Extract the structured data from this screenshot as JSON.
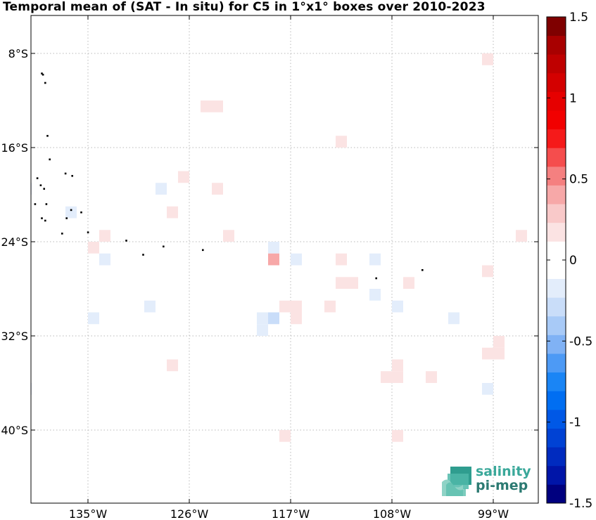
{
  "title": "Temporal mean of (SAT - In situ) for C5 in 1°x1° boxes over 2010-2023",
  "map": {
    "lon_range": [
      -140,
      -95
    ],
    "lat_range": [
      -44,
      -4
    ],
    "x_ticks": [
      {
        "lon": -135,
        "label": "135°W"
      },
      {
        "lon": -126,
        "label": "126°W"
      },
      {
        "lon": -117,
        "label": "117°W"
      },
      {
        "lon": -108,
        "label": "108°W"
      },
      {
        "lon": -99,
        "label": "99°W"
      }
    ],
    "y_ticks": [
      {
        "lat": -8,
        "label": "8°S"
      },
      {
        "lat": -16,
        "label": "16°S"
      },
      {
        "lat": -24,
        "label": "24°S"
      },
      {
        "lat": -32,
        "label": "32°S"
      },
      {
        "lat": -40,
        "label": "40°S"
      }
    ],
    "grid": true
  },
  "colorbar": {
    "min": -1.5,
    "max": 1.5,
    "tick_labels": [
      {
        "value": 1.5,
        "label": "1.5"
      },
      {
        "value": 1,
        "label": "1"
      },
      {
        "value": 0.5,
        "label": "0.5"
      },
      {
        "value": 0,
        "label": "0"
      },
      {
        "value": -0.5,
        "label": "-0.5"
      },
      {
        "value": -1,
        "label": "-1"
      },
      {
        "value": -1.5,
        "label": "-1.5"
      }
    ],
    "colors": [
      "#00007f",
      "#0015a8",
      "#002bbf",
      "#0042d4",
      "#0058e6",
      "#006ef2",
      "#1a85f5",
      "#4d9af5",
      "#80b2f5",
      "#a8caf7",
      "#c9ddf9",
      "#e3edfb",
      "#ffffff",
      "#ffffff",
      "#fbe3e3",
      "#f9c9c9",
      "#f7a8a8",
      "#f58080",
      "#f54d4d",
      "#f51a1a",
      "#f20000",
      "#e60000",
      "#d40000",
      "#bf0000",
      "#a80000",
      "#7f0000"
    ]
  },
  "chart_data": {
    "type": "heatmap",
    "title": "Temporal mean of (SAT - In situ) for C5 in 1°x1° boxes over 2010-2023",
    "xlabel": "",
    "ylabel": "",
    "cells": [
      {
        "lon": -99.5,
        "lat": -8.5,
        "value": 0.12
      },
      {
        "lon": -94.5,
        "lat": -8.5,
        "value": 0.12
      },
      {
        "lon": -94.5,
        "lat": -9.5,
        "value": 0.12
      },
      {
        "lon": -93.5,
        "lat": -9.5,
        "value": 0.12
      },
      {
        "lon": -124.5,
        "lat": -12.5,
        "value": 0.12
      },
      {
        "lon": -123.5,
        "lat": -12.5,
        "value": 0.12
      },
      {
        "lon": -112.5,
        "lat": -15.5,
        "value": 0.12
      },
      {
        "lon": -126.5,
        "lat": -18.5,
        "value": 0.12
      },
      {
        "lon": -128.5,
        "lat": -19.5,
        "value": -0.12
      },
      {
        "lon": -140.5,
        "lat": -19.5,
        "value": -0.12
      },
      {
        "lon": -123.5,
        "lat": -19.5,
        "value": 0.12
      },
      {
        "lon": -136.5,
        "lat": -21.5,
        "value": -0.12
      },
      {
        "lon": -127.5,
        "lat": -21.5,
        "value": 0.12
      },
      {
        "lon": -133.5,
        "lat": -23.5,
        "value": 0.12
      },
      {
        "lon": -122.5,
        "lat": -23.5,
        "value": 0.12
      },
      {
        "lon": -96.5,
        "lat": -23.5,
        "value": 0.12
      },
      {
        "lon": -134.5,
        "lat": -24.5,
        "value": 0.12
      },
      {
        "lon": -118.5,
        "lat": -24.5,
        "value": -0.12
      },
      {
        "lon": -133.5,
        "lat": -25.5,
        "value": -0.12
      },
      {
        "lon": -118.5,
        "lat": -25.5,
        "value": 0.35
      },
      {
        "lon": -116.5,
        "lat": -25.5,
        "value": -0.12
      },
      {
        "lon": -112.5,
        "lat": -25.5,
        "value": 0.12
      },
      {
        "lon": -109.5,
        "lat": -25.5,
        "value": -0.12
      },
      {
        "lon": -99.5,
        "lat": -26.5,
        "value": 0.12
      },
      {
        "lon": -112.5,
        "lat": -27.5,
        "value": 0.12
      },
      {
        "lon": -111.5,
        "lat": -27.5,
        "value": 0.12
      },
      {
        "lon": -106.5,
        "lat": -27.5,
        "value": 0.12
      },
      {
        "lon": -109.5,
        "lat": -28.5,
        "value": -0.12
      },
      {
        "lon": -129.5,
        "lat": -29.5,
        "value": -0.12
      },
      {
        "lon": -117.5,
        "lat": -29.5,
        "value": 0.12
      },
      {
        "lon": -116.5,
        "lat": -29.5,
        "value": 0.12
      },
      {
        "lon": -113.5,
        "lat": -29.5,
        "value": 0.12
      },
      {
        "lon": -107.5,
        "lat": -29.5,
        "value": -0.12
      },
      {
        "lon": -134.5,
        "lat": -30.5,
        "value": -0.12
      },
      {
        "lon": -119.5,
        "lat": -30.5,
        "value": -0.12
      },
      {
        "lon": -118.5,
        "lat": -30.5,
        "value": -0.25
      },
      {
        "lon": -116.5,
        "lat": -30.5,
        "value": 0.12
      },
      {
        "lon": -102.5,
        "lat": -30.5,
        "value": -0.12
      },
      {
        "lon": -119.5,
        "lat": -31.5,
        "value": -0.12
      },
      {
        "lon": -98.5,
        "lat": -32.5,
        "value": 0.12
      },
      {
        "lon": -99.5,
        "lat": -33.5,
        "value": 0.12
      },
      {
        "lon": -98.5,
        "lat": -33.5,
        "value": 0.12
      },
      {
        "lon": -127.5,
        "lat": -34.5,
        "value": 0.12
      },
      {
        "lon": -107.5,
        "lat": -34.5,
        "value": 0.12
      },
      {
        "lon": -108.5,
        "lat": -35.5,
        "value": 0.12
      },
      {
        "lon": -107.5,
        "lat": -35.5,
        "value": 0.12
      },
      {
        "lon": -104.5,
        "lat": -35.5,
        "value": 0.12
      },
      {
        "lon": -94.5,
        "lat": -35.5,
        "value": -0.12
      },
      {
        "lon": -140.5,
        "lat": -36.5,
        "value": -0.12
      },
      {
        "lon": -99.5,
        "lat": -36.5,
        "value": -0.12
      },
      {
        "lon": -117.5,
        "lat": -40.5,
        "value": 0.12
      },
      {
        "lon": -107.5,
        "lat": -40.5,
        "value": 0.12
      }
    ]
  },
  "islands": [
    [
      -140.3,
      -8.9
    ],
    [
      -139.1,
      -9.7
    ],
    [
      -139.0,
      -9.8
    ],
    [
      -138.8,
      -10.5
    ],
    [
      -138.6,
      -15.0
    ],
    [
      -138.4,
      -17.0
    ],
    [
      -137.0,
      -18.2
    ],
    [
      -136.4,
      -18.4
    ],
    [
      -139.5,
      -18.6
    ],
    [
      -139.2,
      -19.2
    ],
    [
      -138.9,
      -19.5
    ],
    [
      -139.7,
      -20.8
    ],
    [
      -138.7,
      -20.8
    ],
    [
      -136.5,
      -21.3
    ],
    [
      -135.6,
      -21.5
    ],
    [
      -139.1,
      -22.0
    ],
    [
      -138.8,
      -22.2
    ],
    [
      -136.9,
      -22.0
    ],
    [
      -135.0,
      -23.2
    ],
    [
      -137.3,
      -23.3
    ],
    [
      -130.1,
      -25.1
    ],
    [
      -128.3,
      -24.4
    ],
    [
      -124.8,
      -24.7
    ],
    [
      -109.4,
      -27.1
    ],
    [
      -105.3,
      -26.4
    ],
    [
      -131.6,
      -23.9
    ]
  ],
  "logo": {
    "line1": "salinity",
    "line2": "pi-mep"
  }
}
